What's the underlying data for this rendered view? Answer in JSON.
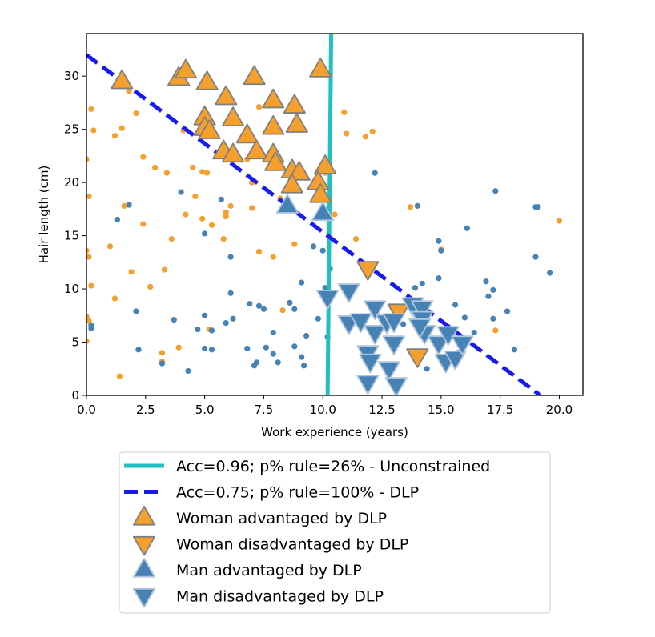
{
  "chart_data": {
    "type": "scatter",
    "title": "",
    "xlabel": "Work experience (years)",
    "ylabel": "Hair length (cm)",
    "xlim": [
      0,
      21
    ],
    "ylim": [
      0,
      34
    ],
    "xticks": [
      0.0,
      2.5,
      5.0,
      7.5,
      10.0,
      12.5,
      15.0,
      17.5,
      20.0
    ],
    "xtick_labels": [
      "0.0",
      "2.5",
      "5.0",
      "7.5",
      "10.0",
      "12.5",
      "15.0",
      "17.5",
      "20.0"
    ],
    "yticks": [
      0,
      5,
      10,
      15,
      20,
      25,
      30
    ],
    "ytick_labels": [
      "0",
      "5",
      "10",
      "15",
      "20",
      "25",
      "30"
    ],
    "grid": false,
    "legend_position": "below",
    "colors": {
      "woman": "#f5a02c",
      "man": "#4682b4",
      "unconstrained": "#20c0c0",
      "dlp": "#1a1aee",
      "woman_marker_edge": "#7f7f7f",
      "man_marker_edge": "#b0c4de"
    },
    "lines": [
      {
        "name": "Acc=0.96; p% rule=26% - Unconstrained",
        "style": "solid",
        "color": "#20c0c0",
        "x": [
          10.35,
          10.2
        ],
        "y": [
          34,
          0
        ]
      },
      {
        "name": "Acc=0.75; p% rule=100% - DLP",
        "style": "dashed",
        "color": "#1a1aee",
        "x": [
          0,
          19.2
        ],
        "y": [
          32,
          0
        ]
      }
    ],
    "series": [
      {
        "kind": "woman",
        "marker": "dot",
        "points": [
          [
            0.0,
            22.2
          ],
          [
            0.1,
            18.7
          ],
          [
            0.2,
            26.9
          ],
          [
            0.3,
            24.9
          ],
          [
            0.0,
            13.6
          ],
          [
            0.1,
            13.0
          ],
          [
            0.2,
            10.3
          ],
          [
            0.0,
            7.4
          ],
          [
            0.1,
            7.0
          ],
          [
            0.0,
            5.1
          ],
          [
            1.5,
            29.6
          ],
          [
            1.8,
            28.6
          ],
          [
            2.1,
            26.5
          ],
          [
            1.5,
            25.1
          ],
          [
            1.2,
            24.4
          ],
          [
            1.6,
            17.8
          ],
          [
            2.4,
            22.4
          ],
          [
            2.9,
            21.4
          ],
          [
            3.4,
            20.9
          ],
          [
            1.0,
            14.0
          ],
          [
            1.9,
            11.6
          ],
          [
            2.4,
            16.1
          ],
          [
            3.6,
            14.7
          ],
          [
            2.7,
            10.2
          ],
          [
            3.3,
            11.8
          ],
          [
            1.2,
            9.1
          ],
          [
            3.2,
            4.0
          ],
          [
            3.9,
            4.5
          ],
          [
            1.4,
            1.8
          ],
          [
            3.2,
            3.2
          ],
          [
            4.1,
            24.9
          ],
          [
            4.5,
            21.4
          ],
          [
            4.9,
            21.0
          ],
          [
            5.1,
            20.9
          ],
          [
            4.6,
            18.7
          ],
          [
            4.9,
            16.6
          ],
          [
            5.3,
            16.0
          ],
          [
            5.9,
            17.2
          ],
          [
            6.1,
            17.8
          ],
          [
            6.2,
            22.4
          ],
          [
            6.8,
            22.2
          ],
          [
            5.8,
            14.7
          ],
          [
            4.2,
            17.0
          ],
          [
            5.9,
            16.8
          ],
          [
            7.0,
            20.0
          ],
          [
            7.3,
            13.5
          ],
          [
            7.9,
            13.0
          ],
          [
            7.0,
            17.6
          ],
          [
            8.3,
            8.0
          ],
          [
            5.3,
            6.1
          ],
          [
            8.8,
            14.2
          ],
          [
            8.2,
            18.5
          ],
          [
            7.3,
            27.1
          ],
          [
            10.9,
            26.6
          ],
          [
            10.5,
            17.0
          ],
          [
            10.1,
            20.9
          ],
          [
            11.4,
            14.7
          ],
          [
            11.0,
            24.6
          ],
          [
            11.8,
            24.3
          ],
          [
            12.1,
            24.8
          ],
          [
            13.7,
            17.7
          ],
          [
            15.0,
            13.7
          ],
          [
            17.3,
            6.1
          ],
          [
            20.0,
            16.4
          ],
          [
            5.2,
            6.2
          ]
        ]
      },
      {
        "kind": "man",
        "marker": "dot",
        "points": [
          [
            0.2,
            6.6
          ],
          [
            0.2,
            6.3
          ],
          [
            1.3,
            16.5
          ],
          [
            1.8,
            17.9
          ],
          [
            2.1,
            7.9
          ],
          [
            2.2,
            4.3
          ],
          [
            3.2,
            3.0
          ],
          [
            3.7,
            7.1
          ],
          [
            4.0,
            19.1
          ],
          [
            4.3,
            2.3
          ],
          [
            4.7,
            6.2
          ],
          [
            5.0,
            15.2
          ],
          [
            5.0,
            7.5
          ],
          [
            5.0,
            4.4
          ],
          [
            5.3,
            4.3
          ],
          [
            5.3,
            6.1
          ],
          [
            5.7,
            18.4
          ],
          [
            5.9,
            6.8
          ],
          [
            6.1,
            13.0
          ],
          [
            6.1,
            9.6
          ],
          [
            6.2,
            7.2
          ],
          [
            6.9,
            8.6
          ],
          [
            6.8,
            4.4
          ],
          [
            7.1,
            2.8
          ],
          [
            7.2,
            3.1
          ],
          [
            7.3,
            8.4
          ],
          [
            7.5,
            8.1
          ],
          [
            7.6,
            4.5
          ],
          [
            7.9,
            5.9
          ],
          [
            7.9,
            3.9
          ],
          [
            8.1,
            3.1
          ],
          [
            8.6,
            8.7
          ],
          [
            8.8,
            4.6
          ],
          [
            8.8,
            8.1
          ],
          [
            9.1,
            10.6
          ],
          [
            9.1,
            3.6
          ],
          [
            9.2,
            2.8
          ],
          [
            9.3,
            5.6
          ],
          [
            9.6,
            14.0
          ],
          [
            9.8,
            7.2
          ],
          [
            10.0,
            13.6
          ],
          [
            10.1,
            10.1
          ],
          [
            10.2,
            5.5
          ],
          [
            10.3,
            11.9
          ],
          [
            12.2,
            20.9
          ],
          [
            12.8,
            5.2
          ],
          [
            13.0,
            2.8
          ],
          [
            13.4,
            6.7
          ],
          [
            13.9,
            10.1
          ],
          [
            14.2,
            10.5
          ],
          [
            14.0,
            17.8
          ],
          [
            14.4,
            2.5
          ],
          [
            14.9,
            11.0
          ],
          [
            14.9,
            14.5
          ],
          [
            15.0,
            13.6
          ],
          [
            15.2,
            5.2
          ],
          [
            15.5,
            3.3
          ],
          [
            15.6,
            8.5
          ],
          [
            15.7,
            4.0
          ],
          [
            16.0,
            7.3
          ],
          [
            16.1,
            15.7
          ],
          [
            16.4,
            5.9
          ],
          [
            16.9,
            10.7
          ],
          [
            17.0,
            9.3
          ],
          [
            17.2,
            7.2
          ],
          [
            17.2,
            9.9
          ],
          [
            17.3,
            19.2
          ],
          [
            17.8,
            7.9
          ],
          [
            18.1,
            4.3
          ],
          [
            19.0,
            13.0
          ],
          [
            19.1,
            17.7
          ],
          [
            19.6,
            11.5
          ],
          [
            19.0,
            17.7
          ]
        ]
      },
      {
        "kind": "woman",
        "marker": "triangle-up",
        "name": "Woman advantaged by DLP",
        "points": [
          [
            1.5,
            29.5
          ],
          [
            3.9,
            29.8
          ],
          [
            4.2,
            30.5
          ],
          [
            5.1,
            29.4
          ],
          [
            7.1,
            29.9
          ],
          [
            9.9,
            30.6
          ],
          [
            5.9,
            28.0
          ],
          [
            7.9,
            27.7
          ],
          [
            8.8,
            27.2
          ],
          [
            5.0,
            26.1
          ],
          [
            6.2,
            26.0
          ],
          [
            5.0,
            25.1
          ],
          [
            5.2,
            24.8
          ],
          [
            6.8,
            24.4
          ],
          [
            7.9,
            25.2
          ],
          [
            8.9,
            25.4
          ],
          [
            5.8,
            22.9
          ],
          [
            6.2,
            22.6
          ],
          [
            7.2,
            22.9
          ],
          [
            7.9,
            22.6
          ],
          [
            8.0,
            21.8
          ],
          [
            8.7,
            21.1
          ],
          [
            9.0,
            20.9
          ],
          [
            10.1,
            21.5
          ],
          [
            8.7,
            19.7
          ],
          [
            9.8,
            20.0
          ],
          [
            9.9,
            18.8
          ]
        ]
      },
      {
        "kind": "woman",
        "marker": "triangle-down",
        "name": "Woman disadvantaged by DLP",
        "points": [
          [
            11.9,
            11.9
          ],
          [
            13.2,
            7.9
          ],
          [
            14.0,
            3.7
          ]
        ]
      },
      {
        "kind": "man",
        "marker": "triangle-up",
        "name": "Man advantaged by DLP",
        "points": [
          [
            8.5,
            17.8
          ],
          [
            10.0,
            17.1
          ]
        ]
      },
      {
        "kind": "man",
        "marker": "triangle-down",
        "name": "Man disadvantaged by DLP",
        "points": [
          [
            10.2,
            9.2
          ],
          [
            11.1,
            9.8
          ],
          [
            11.1,
            6.8
          ],
          [
            11.6,
            7.0
          ],
          [
            11.9,
            4.0
          ],
          [
            11.9,
            1.2
          ],
          [
            12.0,
            3.2
          ],
          [
            12.2,
            5.9
          ],
          [
            12.2,
            8.2
          ],
          [
            12.7,
            6.9
          ],
          [
            12.8,
            2.5
          ],
          [
            13.0,
            4.9
          ],
          [
            13.0,
            7.0
          ],
          [
            13.1,
            1.0
          ],
          [
            13.8,
            8.5
          ],
          [
            14.2,
            8.2
          ],
          [
            14.2,
            7.2
          ],
          [
            14.3,
            5.9
          ],
          [
            14.9,
            4.9
          ],
          [
            15.2,
            3.2
          ],
          [
            15.3,
            5.8
          ],
          [
            15.6,
            3.5
          ],
          [
            15.9,
            4.9
          ],
          [
            14.1,
            6.5
          ]
        ]
      }
    ],
    "legend": [
      {
        "label": "Acc=0.96; p% rule=26% - Unconstrained",
        "symbol": "solid-line",
        "color": "#20c0c0"
      },
      {
        "label": "Acc=0.75; p% rule=100% - DLP",
        "symbol": "dashed-line",
        "color": "#1a1aee"
      },
      {
        "label": "Woman advantaged by DLP",
        "symbol": "triangle-up",
        "color": "#f5a02c"
      },
      {
        "label": "Woman disadvantaged by DLP",
        "symbol": "triangle-down",
        "color": "#f5a02c"
      },
      {
        "label": "Man advantaged by DLP",
        "symbol": "triangle-up",
        "color": "#4682b4"
      },
      {
        "label": "Man disadvantaged by DLP",
        "symbol": "triangle-down",
        "color": "#4682b4"
      }
    ]
  }
}
